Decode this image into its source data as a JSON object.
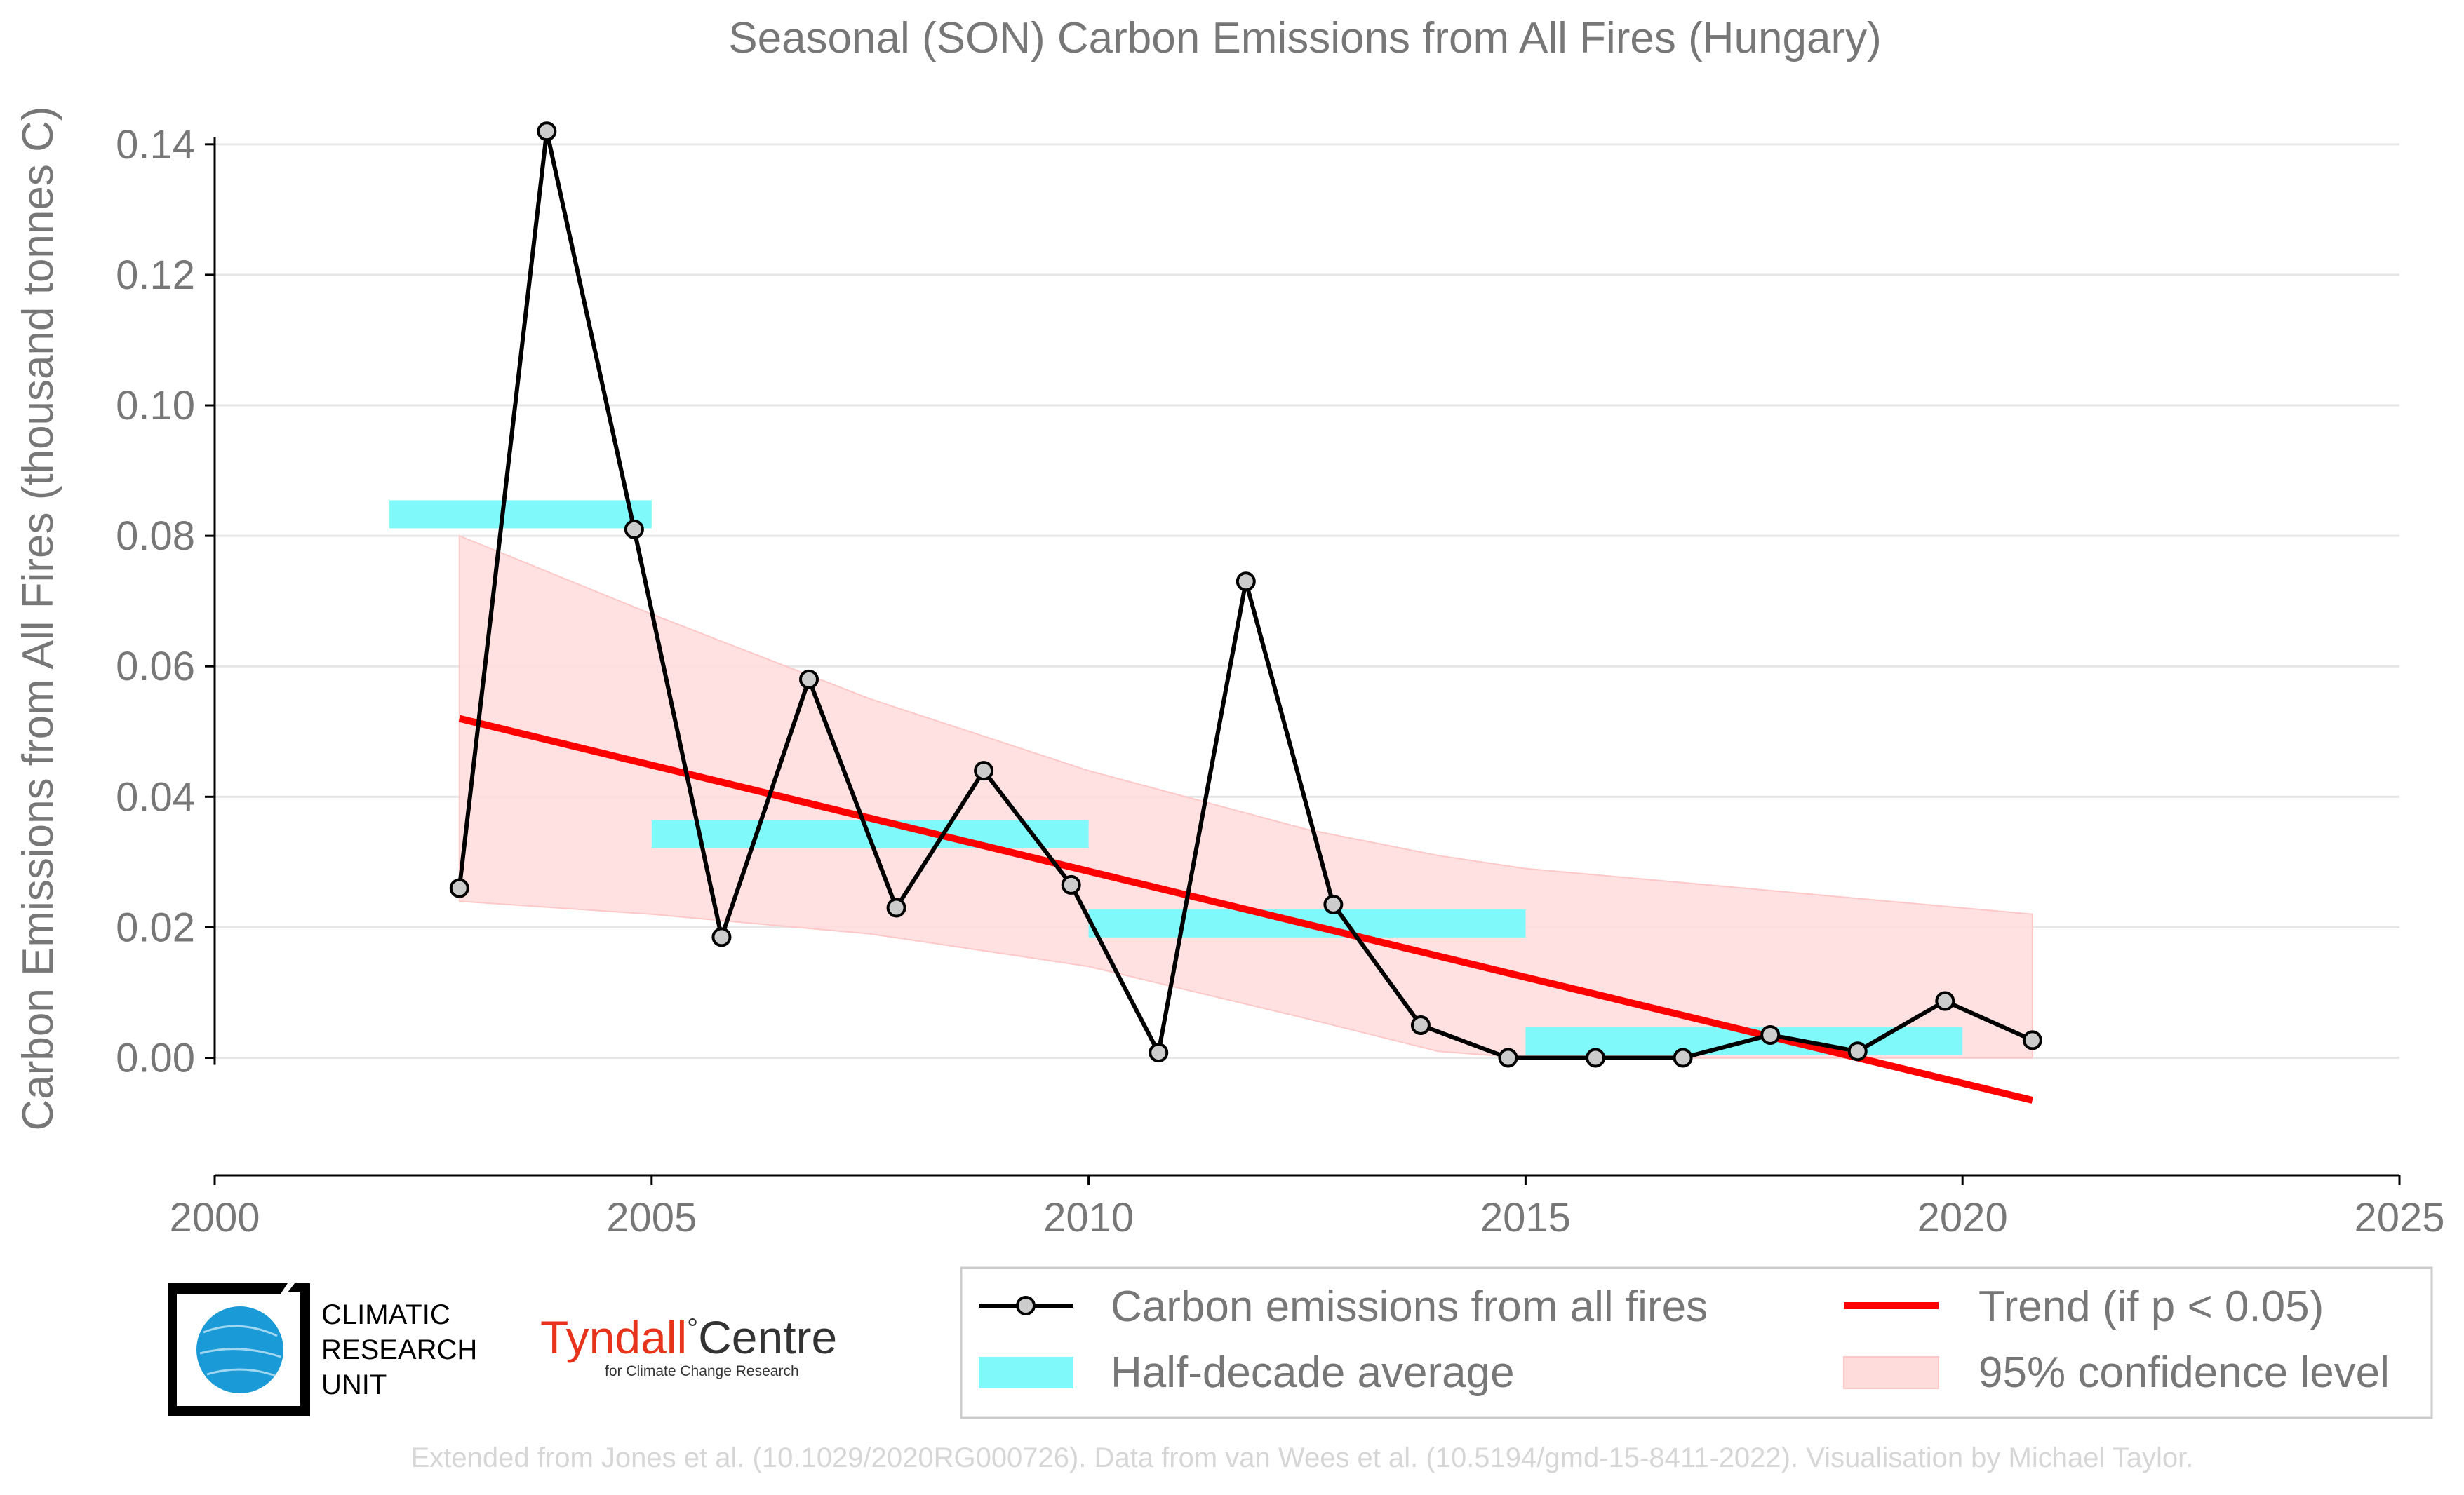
{
  "chart_data": {
    "type": "line",
    "title": "Seasonal (SON) Carbon Emissions from All Fires (Hungary)",
    "xlabel": "",
    "ylabel": "Carbon Emissions from All Fires (thousand tonnes C)",
    "xlim": [
      2000,
      2025
    ],
    "ylim": [
      -0.018,
      0.146
    ],
    "xticks": [
      2000,
      2005,
      2010,
      2015,
      2020,
      2025
    ],
    "xtick_labels": [
      "2000",
      "2005",
      "2010",
      "2015",
      "2020",
      "2025"
    ],
    "yticks": [
      0.0,
      0.02,
      0.04,
      0.06,
      0.08,
      0.1,
      0.12,
      0.14
    ],
    "ytick_labels": [
      "0.00",
      "0.02",
      "0.04",
      "0.06",
      "0.08",
      "0.10",
      "0.12",
      "0.14"
    ],
    "grid": "horizontal",
    "series": [
      {
        "name": "Carbon emissions from all fires",
        "color": "#000000",
        "marker_fill": "#cccccc",
        "x": [
          2002.8,
          2003.8,
          2004.8,
          2005.8,
          2006.8,
          2007.8,
          2008.8,
          2009.8,
          2010.8,
          2011.8,
          2012.8,
          2013.8,
          2014.8,
          2015.8,
          2016.8,
          2017.8,
          2018.8,
          2019.8,
          2020.8
        ],
        "y": [
          0.026,
          0.142,
          0.081,
          0.0185,
          0.058,
          0.023,
          0.044,
          0.0265,
          0.0008,
          0.073,
          0.0235,
          0.005,
          0.0,
          0.0,
          0.0,
          0.0035,
          0.001,
          0.0087,
          0.0027
        ]
      },
      {
        "name": "Half-decade average",
        "color": "#7ff9f9",
        "segments": [
          {
            "x": [
              2002,
              2005
            ],
            "y": 0.0833
          },
          {
            "x": [
              2005,
              2010
            ],
            "y": 0.0343
          },
          {
            "x": [
              2010,
              2015
            ],
            "y": 0.0206
          },
          {
            "x": [
              2015,
              2020
            ],
            "y": 0.0026
          }
        ]
      },
      {
        "name": "Trend (if p < 0.05)",
        "color": "#ff0000",
        "x": [
          2002.8,
          2020.8
        ],
        "y": [
          0.052,
          -0.0065
        ]
      },
      {
        "name": "95% confidence level",
        "color": "#ffdcdc",
        "x": [
          2002.8,
          2005,
          2007.5,
          2010,
          2012.5,
          2014,
          2015,
          2017.5,
          2020.8
        ],
        "upper": [
          0.08,
          0.068,
          0.055,
          0.044,
          0.035,
          0.031,
          0.029,
          0.026,
          0.022
        ],
        "lower": [
          0.024,
          0.022,
          0.019,
          0.014,
          0.006,
          0.001,
          0.0,
          0.0,
          0.0
        ]
      }
    ],
    "legend": {
      "placement": "bottom-right",
      "entries": [
        "Carbon emissions from all fires",
        "Trend (if p < 0.05)",
        "Half-decade average",
        "95% confidence level"
      ]
    }
  },
  "logos": {
    "cru_line1": "CLIMATIC",
    "cru_line2": "RESEARCH",
    "cru_line3": "UNIT",
    "tyndall_name": "Tyndall",
    "tyndall_degree": "°",
    "tyndall_centre": "Centre",
    "tyndall_sub": "for Climate Change Research",
    "cru_color": "#1a9ad6",
    "tyndall_red": "#e8331c"
  },
  "credit": "Extended from Jones et al. (10.1029/2020RG000726). Data from van Wees et al. (10.5194/gmd-15-8411-2022). Visualisation by Michael Taylor."
}
